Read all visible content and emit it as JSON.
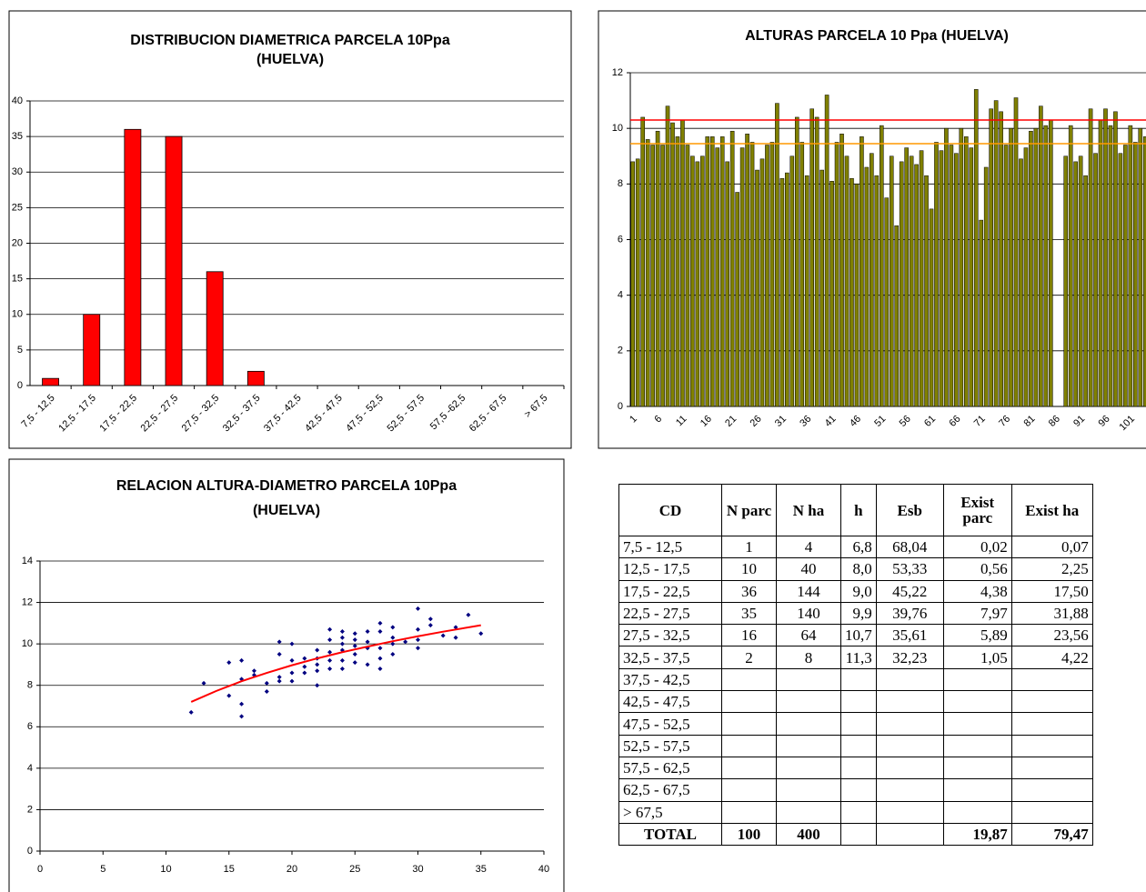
{
  "chart_data": [
    {
      "type": "bar",
      "title": [
        "DISTRIBUCION DIAMETRICA PARCELA 10Ppa",
        "(HUELVA)"
      ],
      "categories": [
        "7,5 - 12,5",
        "12,5 - 17,5",
        "17,5 - 22,5",
        "22,5 - 27,5",
        "27,5 - 32,5",
        "32,5 - 37,5",
        "37,5 - 42,5",
        "42,5 - 47,5",
        "47,5 - 52,5",
        "52,5 - 57,5",
        "57,5 -62,5",
        "62,5 - 67,5",
        "> 67,5"
      ],
      "values": [
        1,
        10,
        36,
        35,
        16,
        2,
        0,
        0,
        0,
        0,
        0,
        0,
        0
      ],
      "color": "#ff0000",
      "ylim": [
        0,
        40
      ],
      "yticks": [
        0,
        5,
        10,
        15,
        20,
        25,
        30,
        35,
        40
      ],
      "grid": true
    },
    {
      "type": "bar",
      "title": "ALTURAS PARCELA 10 Ppa (HUELVA)",
      "categories": [
        "1",
        null,
        null,
        null,
        null,
        "6",
        null,
        null,
        null,
        null,
        "11",
        null,
        null,
        null,
        null,
        "16",
        null,
        null,
        null,
        null,
        "21",
        null,
        null,
        null,
        null,
        "26",
        null,
        null,
        null,
        null,
        "31",
        null,
        null,
        null,
        null,
        "36",
        null,
        null,
        null,
        null,
        "41",
        null,
        null,
        null,
        null,
        "46",
        null,
        null,
        null,
        null,
        "51",
        null,
        null,
        null,
        null,
        "56",
        null,
        null,
        null,
        null,
        "61",
        null,
        null,
        null,
        null,
        "66",
        null,
        null,
        null,
        null,
        "71",
        null,
        null,
        null,
        null,
        "76",
        null,
        null,
        null,
        null,
        "81",
        null,
        null,
        null,
        null,
        "86",
        null,
        null,
        null,
        null,
        "91",
        null,
        null,
        null,
        null,
        "96",
        null,
        null,
        null,
        null,
        "101",
        null,
        null,
        null
      ],
      "values": [
        8.8,
        8.9,
        10.4,
        9.6,
        9.4,
        9.9,
        9.4,
        10.8,
        10.2,
        9.7,
        10.3,
        9.4,
        9.0,
        8.8,
        9.0,
        9.7,
        9.7,
        9.3,
        9.7,
        8.8,
        9.9,
        7.7,
        9.3,
        9.8,
        9.5,
        8.5,
        8.9,
        9.4,
        9.5,
        10.9,
        8.2,
        8.4,
        9.0,
        10.4,
        9.5,
        8.3,
        10.7,
        10.4,
        8.5,
        11.2,
        8.1,
        9.5,
        9.8,
        9.0,
        8.2,
        8.0,
        9.7,
        8.6,
        9.1,
        8.3,
        10.1,
        7.5,
        9.0,
        6.5,
        8.8,
        9.3,
        9.0,
        8.7,
        9.2,
        8.3,
        7.1,
        9.5,
        9.2,
        10.0,
        9.4,
        9.1,
        10.0,
        9.7,
        9.3,
        11.4,
        6.7,
        8.6,
        10.7,
        11.0,
        10.6,
        9.4,
        10.0,
        11.1,
        8.9,
        9.3,
        9.9,
        10.0,
        10.8,
        10.1,
        10.3,
        null,
        null,
        9.0,
        10.1,
        8.8,
        9.0,
        8.3,
        10.7,
        9.1,
        10.3,
        10.7,
        10.1,
        10.6,
        9.1,
        9.4,
        10.1,
        9.5,
        10.0,
        9.7
      ],
      "color": "#808000",
      "ylim": [
        0,
        12
      ],
      "yticks": [
        0,
        2,
        4,
        6,
        8,
        10,
        12
      ],
      "grid": true,
      "hlines": [
        {
          "value": 10.3,
          "color": "#ff0000"
        },
        {
          "value": 9.45,
          "color": "#ff9900"
        }
      ]
    },
    {
      "type": "scatter",
      "title": [
        "RELACION ALTURA-DIAMETRO PARCELA 10Ppa",
        "(HUELVA)"
      ],
      "x": [
        12,
        13,
        15,
        15,
        16,
        16,
        16,
        16,
        17,
        17,
        18,
        18,
        19,
        19,
        19,
        19,
        20,
        20,
        20,
        20,
        21,
        21,
        21,
        22,
        22,
        22,
        22,
        22,
        23,
        23,
        23,
        23,
        23,
        24,
        24,
        24,
        24,
        24,
        24,
        25,
        25,
        25,
        25,
        25,
        26,
        26,
        26,
        26,
        27,
        27,
        27,
        27,
        27,
        28,
        28,
        28,
        28,
        29,
        30,
        30,
        30,
        30,
        31,
        31,
        32,
        33,
        33,
        34,
        35
      ],
      "values": [
        6.7,
        8.1,
        9.1,
        7.5,
        9.2,
        8.3,
        7.1,
        6.5,
        8.7,
        8.5,
        7.7,
        8.1,
        10.1,
        9.5,
        8.4,
        8.2,
        10.0,
        9.2,
        8.6,
        8.2,
        9.3,
        8.9,
        8.6,
        9.7,
        9.3,
        9.0,
        8.0,
        8.7,
        10.7,
        10.2,
        9.6,
        9.2,
        8.8,
        10.6,
        10.3,
        10.0,
        9.7,
        9.2,
        8.8,
        10.5,
        10.2,
        9.9,
        9.5,
        9.1,
        10.6,
        10.1,
        9.8,
        9.0,
        11.0,
        10.6,
        9.8,
        9.3,
        8.8,
        10.8,
        10.3,
        10.0,
        9.5,
        10.1,
        11.7,
        10.7,
        10.2,
        9.8,
        11.2,
        10.9,
        10.4,
        10.8,
        10.3,
        11.4,
        10.5
      ],
      "color": "#000080",
      "trendline": {
        "x": [
          12,
          14,
          16,
          18,
          20,
          22,
          24,
          26,
          28,
          30,
          32,
          35
        ],
        "values": [
          7.2,
          7.73,
          8.2,
          8.6,
          8.97,
          9.3,
          9.6,
          9.87,
          10.13,
          10.37,
          10.59,
          10.9
        ],
        "color": "#ff0000"
      },
      "xlim": [
        0,
        40
      ],
      "xticks": [
        0,
        5,
        10,
        15,
        20,
        25,
        30,
        35,
        40
      ],
      "ylim": [
        0,
        14
      ],
      "yticks": [
        0,
        2,
        4,
        6,
        8,
        10,
        12,
        14
      ],
      "grid": true
    }
  ],
  "table": {
    "header": [
      "CD",
      "N parc",
      "N ha",
      "h",
      "Esb",
      "Exist parc",
      "Exist ha"
    ],
    "rows": [
      [
        "7,5 - 12,5",
        "1",
        "4",
        "6,8",
        "68,04",
        "0,02",
        "0,07"
      ],
      [
        "12,5 - 17,5",
        "10",
        "40",
        "8,0",
        "53,33",
        "0,56",
        "2,25"
      ],
      [
        "17,5 - 22,5",
        "36",
        "144",
        "9,0",
        "45,22",
        "4,38",
        "17,50"
      ],
      [
        "22,5 - 27,5",
        "35",
        "140",
        "9,9",
        "39,76",
        "7,97",
        "31,88"
      ],
      [
        "27,5 - 32,5",
        "16",
        "64",
        "10,7",
        "35,61",
        "5,89",
        "23,56"
      ],
      [
        "32,5 - 37,5",
        "2",
        "8",
        "11,3",
        "32,23",
        "1,05",
        "4,22"
      ],
      [
        "37,5 - 42,5",
        null,
        null,
        null,
        null,
        null,
        null
      ],
      [
        "42,5 - 47,5",
        null,
        null,
        null,
        null,
        null,
        null
      ],
      [
        "47,5 - 52,5",
        null,
        null,
        null,
        null,
        null,
        null
      ],
      [
        "52,5 - 57,5",
        null,
        null,
        null,
        null,
        null,
        null
      ],
      [
        "57,5 - 62,5",
        null,
        null,
        null,
        null,
        null,
        null
      ],
      [
        "62,5 - 67,5",
        null,
        null,
        null,
        null,
        null,
        null
      ],
      [
        "> 67,5",
        null,
        null,
        null,
        null,
        null,
        null
      ]
    ],
    "total": [
      "TOTAL",
      "100",
      "400",
      null,
      null,
      "19,87",
      "79,47"
    ]
  }
}
